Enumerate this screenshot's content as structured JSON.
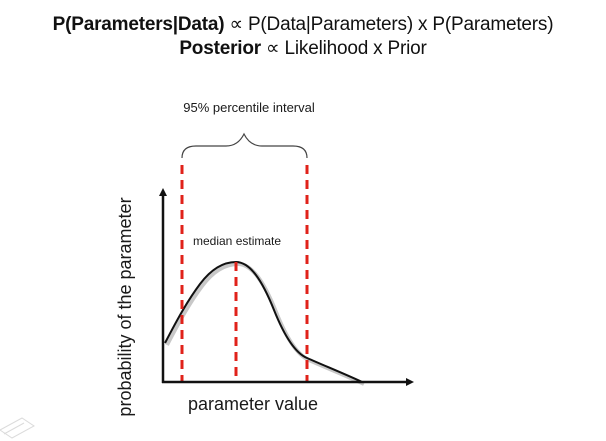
{
  "formula": {
    "line1_bold": "P(Parameters|Data)",
    "line1_symbol": "∝",
    "line1_rest": "P(Data|Parameters) x P(Parameters)",
    "line2_bold": "Posterior",
    "line2_symbol": "∝",
    "line2_rest": "Likelihood x Prior"
  },
  "diagram": {
    "interval_label": "95% percentile interval",
    "median_label": "median estimate",
    "x_axis_label": "parameter value",
    "y_axis_label": "probability of the parameter",
    "colors": {
      "curve": "#111111",
      "axis": "#111111",
      "interval_lines": "#e0221a",
      "curve_shadow": "#c8c8c8"
    }
  }
}
